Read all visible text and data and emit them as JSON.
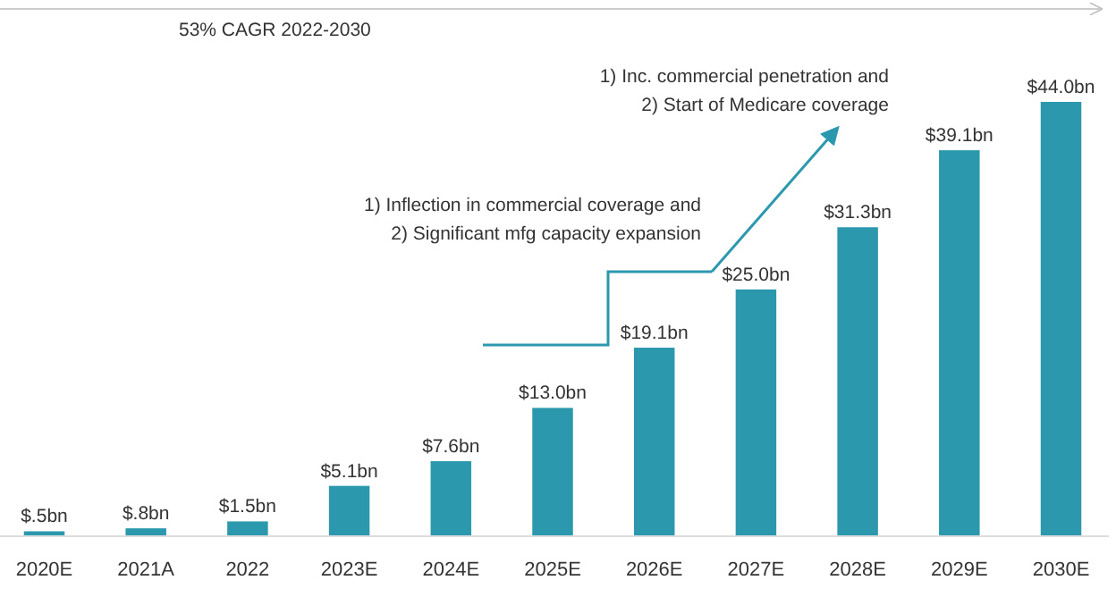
{
  "chart_data": {
    "type": "bar",
    "categories": [
      "2020E",
      "2021A",
      "2022",
      "2023E",
      "2024E",
      "2025E",
      "2026E",
      "2027E",
      "2028E",
      "2029E",
      "2030E"
    ],
    "values": [
      0.5,
      0.8,
      1.5,
      5.1,
      7.6,
      13.0,
      19.1,
      25.0,
      31.3,
      39.1,
      44.0
    ],
    "value_labels": [
      "$.5bn",
      "$.8bn",
      "$1.5bn",
      "$5.1bn",
      "$7.6bn",
      "$13.0bn",
      "$19.1bn",
      "$25.0bn",
      "$31.3bn",
      "$39.1bn",
      "$44.0bn"
    ],
    "color": "#2b98ad",
    "annotations": [
      "53% CAGR 2022-2030",
      "1) Inflection in commercial coverage and\n2) Significant mfg capacity expansion",
      "1) Inc. commercial penetration and\n2) Start of Medicare coverage"
    ]
  }
}
